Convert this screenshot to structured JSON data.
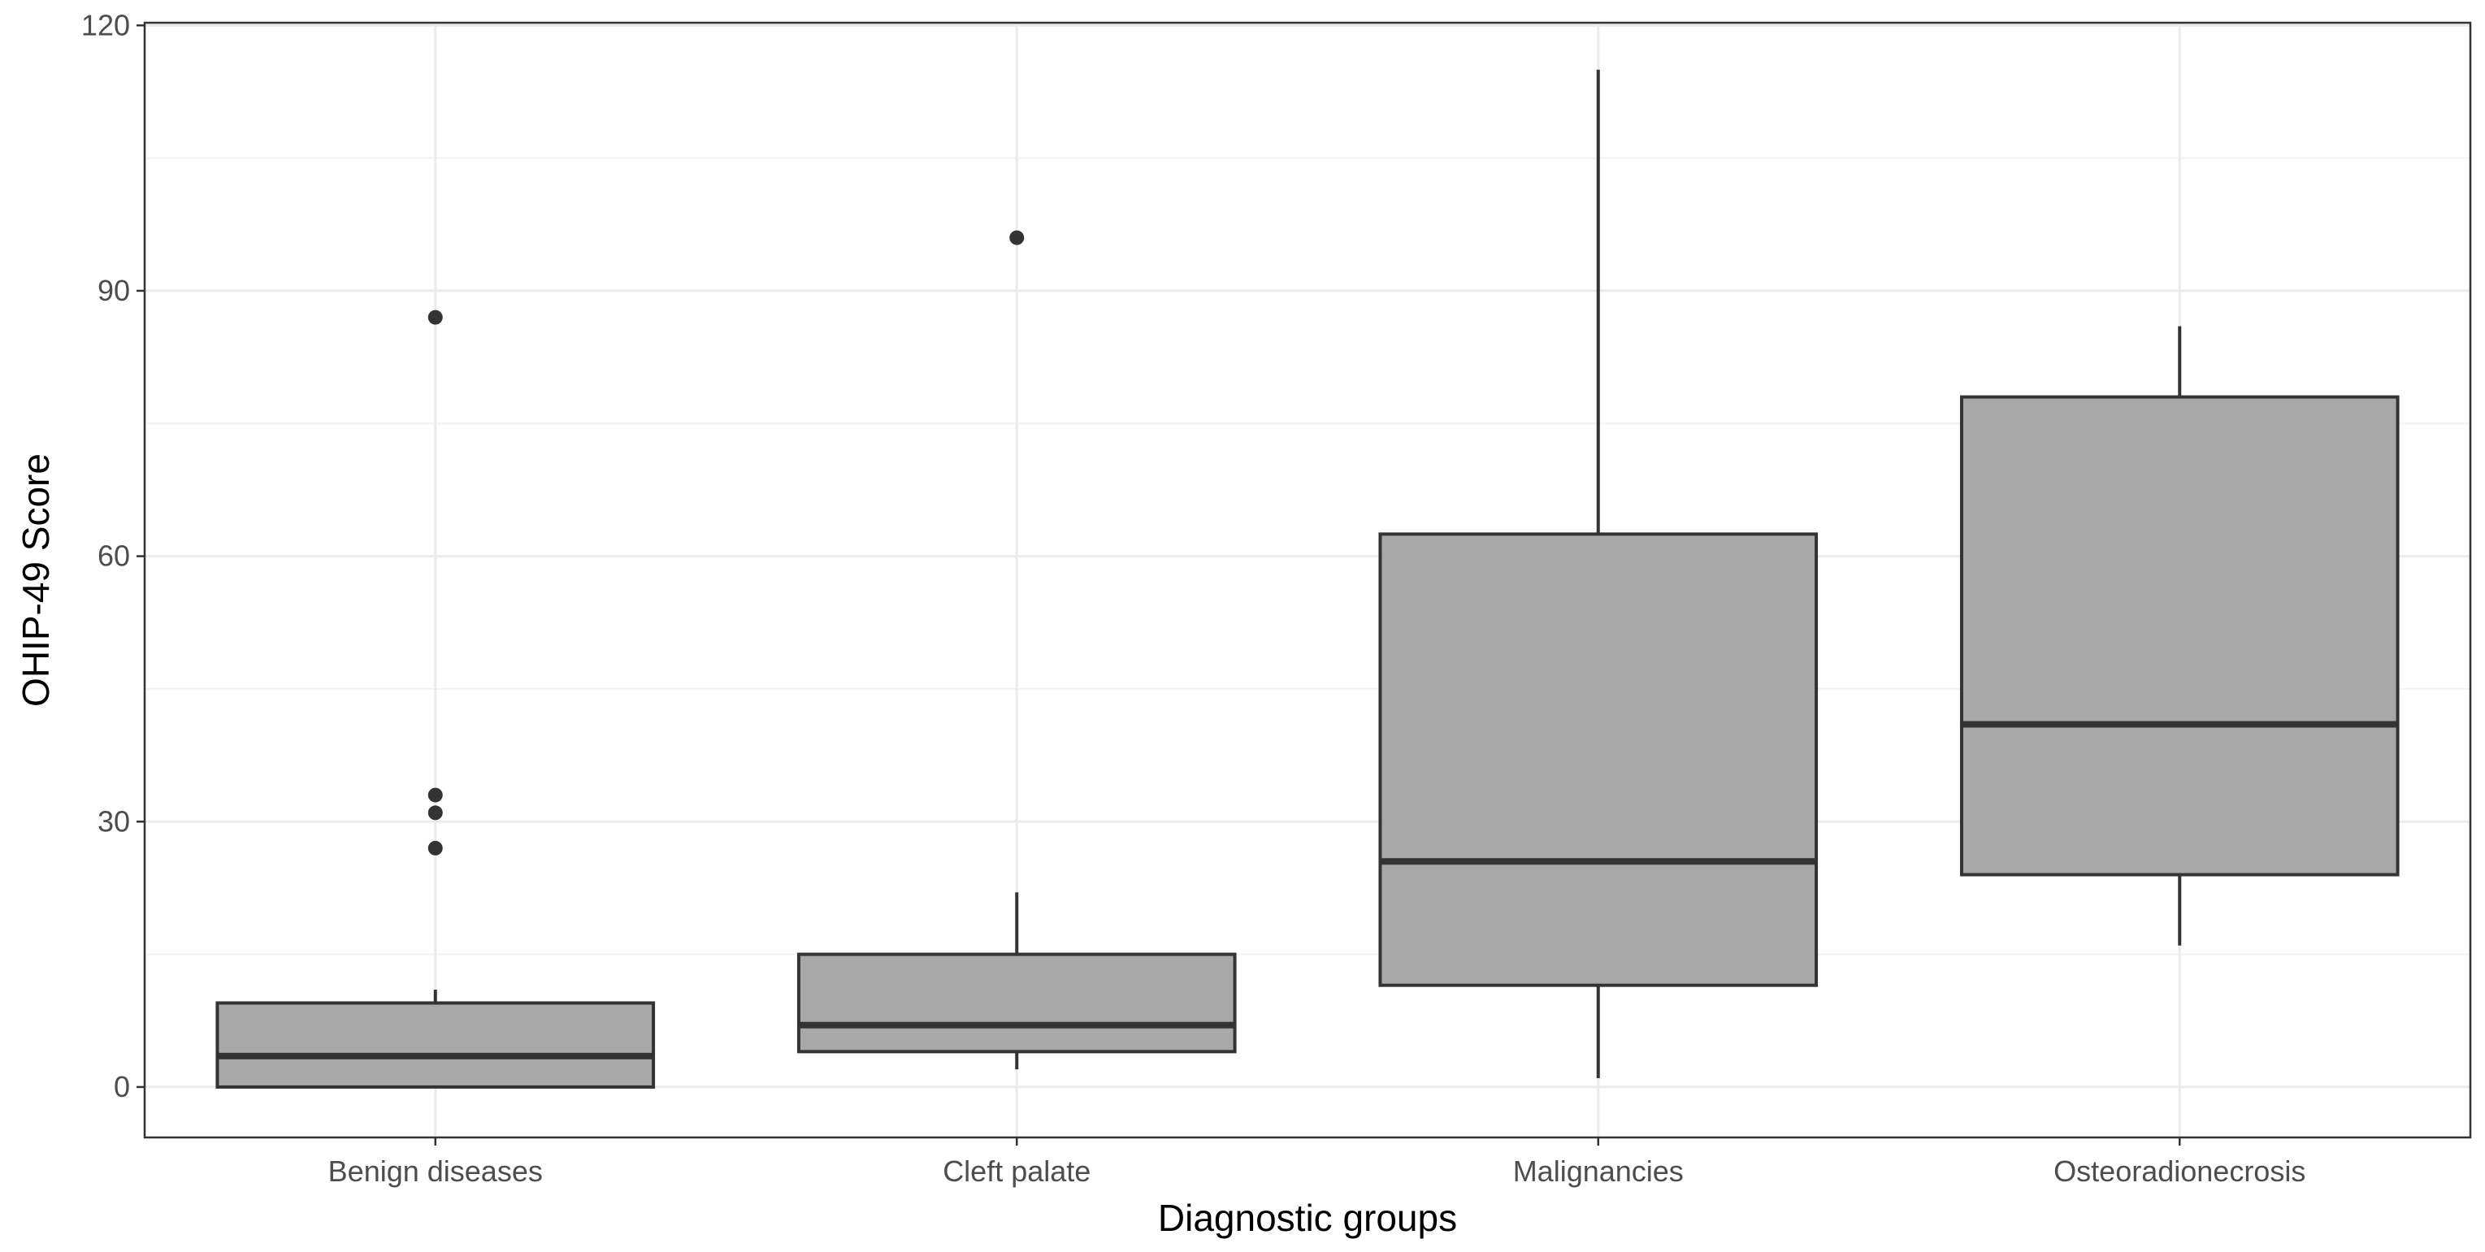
{
  "chart_data": {
    "type": "boxplot",
    "title": "",
    "xlabel": "Diagnostic groups",
    "ylabel": "OHIP-49 Score",
    "ylim": [
      -5.7,
      120.3
    ],
    "yticks": [
      0,
      30,
      60,
      90,
      120
    ],
    "yticks_minor": [
      15,
      45,
      75,
      105
    ],
    "grid": true,
    "fill_color": "#a8a8a8",
    "line_color": "#333333",
    "categories": [
      "Benign diseases",
      "Cleft palate",
      "Malignancies",
      "Osteoradionecrosis"
    ],
    "boxes": [
      {
        "category": "Benign diseases",
        "whisker_low": 0,
        "q1": 0,
        "median": 3.5,
        "q3": 9.5,
        "whisker_high": 11,
        "outliers": [
          27,
          31,
          33,
          87
        ]
      },
      {
        "category": "Cleft palate",
        "whisker_low": 2,
        "q1": 4,
        "median": 7,
        "q3": 15,
        "whisker_high": 22,
        "outliers": [
          96
        ]
      },
      {
        "category": "Malignancies",
        "whisker_low": 1,
        "q1": 11.5,
        "median": 25.5,
        "q3": 62.5,
        "whisker_high": 115,
        "outliers": []
      },
      {
        "category": "Osteoradionecrosis",
        "whisker_low": 16,
        "q1": 24,
        "median": 41,
        "q3": 78,
        "whisker_high": 86,
        "outliers": []
      }
    ]
  }
}
